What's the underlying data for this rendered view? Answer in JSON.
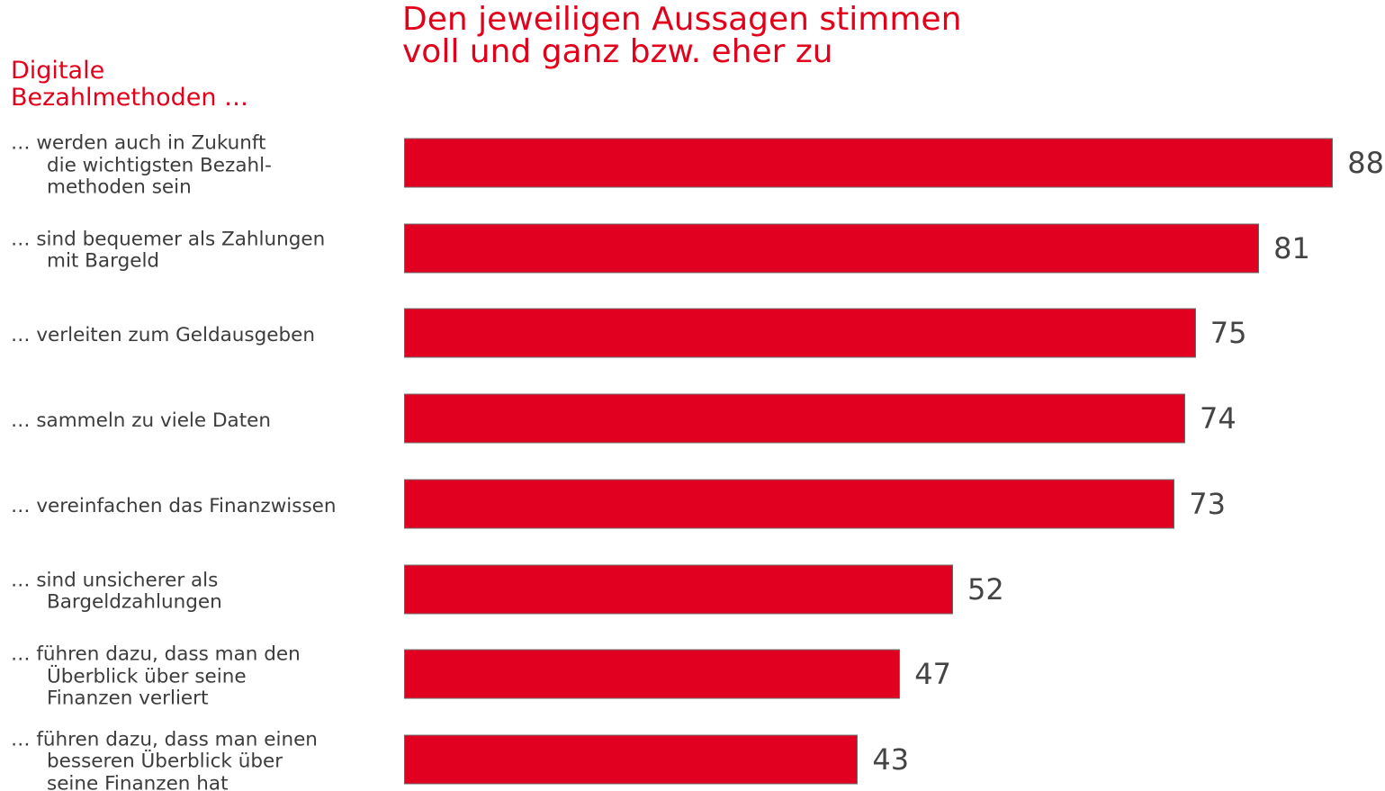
{
  "chart_data": {
    "type": "bar",
    "orientation": "horizontal",
    "title": "Den jeweiligen Aussagen stimmen\nvoll und ganz bzw. eher zu",
    "subtitle": "Digitale\nBezahlmethoden …",
    "categories": [
      "… werden auch in Zukunft\ndie wichtigsten Bezahl-\nmethoden sein",
      "… sind bequemer als Zahlungen\nmit Bargeld",
      "… verleiten zum Geldausgeben",
      "… sammeln zu viele Daten",
      "… vereinfachen das Finanzwissen",
      "… sind unsicherer als\nBargeldzahlungen",
      "… führen dazu, dass man den\nÜberblick über seine\nFinanzen verliert",
      "… führen dazu, dass man einen\nbesseren Überblick über\nseine Finanzen hat"
    ],
    "values": [
      88,
      81,
      75,
      74,
      73,
      52,
      47,
      43
    ],
    "color": "#e10020"
  }
}
